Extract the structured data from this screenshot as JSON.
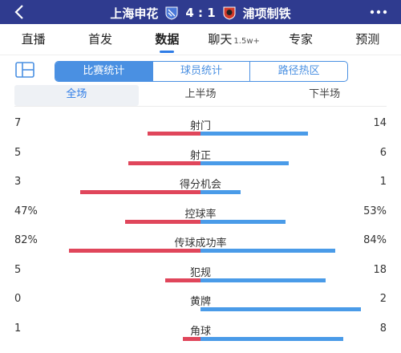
{
  "header": {
    "home_team": "上海申花",
    "score": "4 : 1",
    "away_team": "浦项制铁"
  },
  "tabs": [
    {
      "label": "直播"
    },
    {
      "label": "首发"
    },
    {
      "label": "数据",
      "active": true
    },
    {
      "label": "聊天",
      "badge": "1.5w+"
    },
    {
      "label": "专家"
    },
    {
      "label": "预测"
    }
  ],
  "segments": [
    "比赛统计",
    "球员统计",
    "路径热区"
  ],
  "periods": [
    "全场",
    "上半场",
    "下半场"
  ],
  "colors": {
    "home": "#e0465b",
    "away": "#4a9be8",
    "accent": "#4a90e2",
    "header": "#2f3b8f"
  },
  "stats": [
    {
      "label": "射门",
      "home": "7",
      "away": "14",
      "home_fill": 0.33,
      "away_fill": 0.67
    },
    {
      "label": "射正",
      "home": "5",
      "away": "6",
      "home_fill": 0.45,
      "away_fill": 0.55
    },
    {
      "label": "得分机会",
      "home": "3",
      "away": "1",
      "home_fill": 0.75,
      "away_fill": 0.25
    },
    {
      "label": "控球率",
      "home": "47%",
      "away": "53%",
      "home_fill": 0.47,
      "away_fill": 0.53
    },
    {
      "label": "传球成功率",
      "home": "82%",
      "away": "84%",
      "home_fill": 0.82,
      "away_fill": 0.84
    },
    {
      "label": "犯规",
      "home": "5",
      "away": "18",
      "home_fill": 0.22,
      "away_fill": 0.78
    },
    {
      "label": "黄牌",
      "home": "0",
      "away": "2",
      "home_fill": 0.0,
      "away_fill": 1.0
    },
    {
      "label": "角球",
      "home": "1",
      "away": "8",
      "home_fill": 0.11,
      "away_fill": 0.89
    }
  ]
}
